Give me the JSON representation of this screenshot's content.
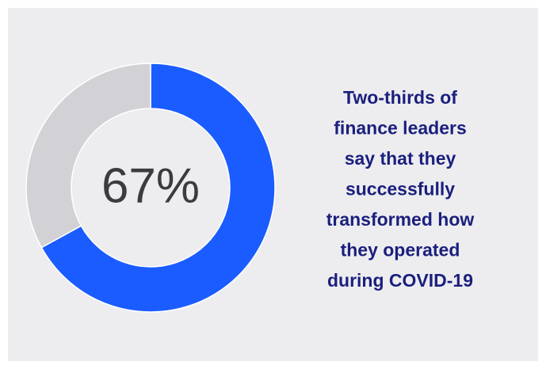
{
  "chart_data": {
    "type": "donut",
    "values": [
      67,
      33
    ],
    "value_labels": [
      "67%",
      null
    ],
    "colors": [
      "#1a5cff",
      "#d2d2d6"
    ],
    "annotation": [
      "Two-thirds of",
      "finance leaders",
      "say that they",
      "successfully",
      "transformed how",
      "they operated",
      "during COVID-19"
    ]
  }
}
